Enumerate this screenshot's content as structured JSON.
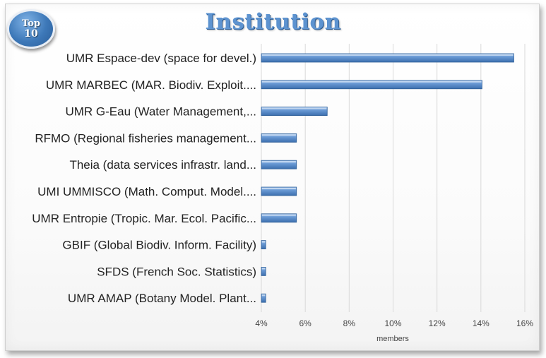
{
  "badge": {
    "line1": "Top",
    "line2": "10"
  },
  "chart_data": {
    "type": "bar",
    "orientation": "horizontal",
    "title": "Institution",
    "categories": [
      "UMR Espace-dev (space for devel.)",
      "UMR MARBEC (MAR. Biodiv. Exploit....",
      "UMR G-Eau (Water Management,...",
      "RFMO (Regional fisheries management...",
      "Theia (data services infrastr. land...",
      "UMI UMMISCO (Math. Comput. Model....",
      "UMR Entropie (Tropic. Mar. Ecol. Pacific...",
      "GBIF (Global Biodiv. Inform. Facility)",
      "SFDS (French Soc. Statistics)",
      "UMR AMAP (Botany Model. Plant..."
    ],
    "values": [
      15.5,
      14.05,
      7.0,
      5.6,
      5.6,
      5.6,
      5.6,
      4.2,
      4.2,
      4.2
    ],
    "unit": "%",
    "xlabel": "members",
    "ylabel": "",
    "xlim": [
      4,
      16
    ],
    "xticks": [
      4,
      6,
      8,
      10,
      12,
      14,
      16
    ],
    "xtick_labels": [
      "4%",
      "6%",
      "8%",
      "10%",
      "12%",
      "14%",
      "16%"
    ],
    "grid": "vertical",
    "bar_color": "#5b8fce"
  }
}
